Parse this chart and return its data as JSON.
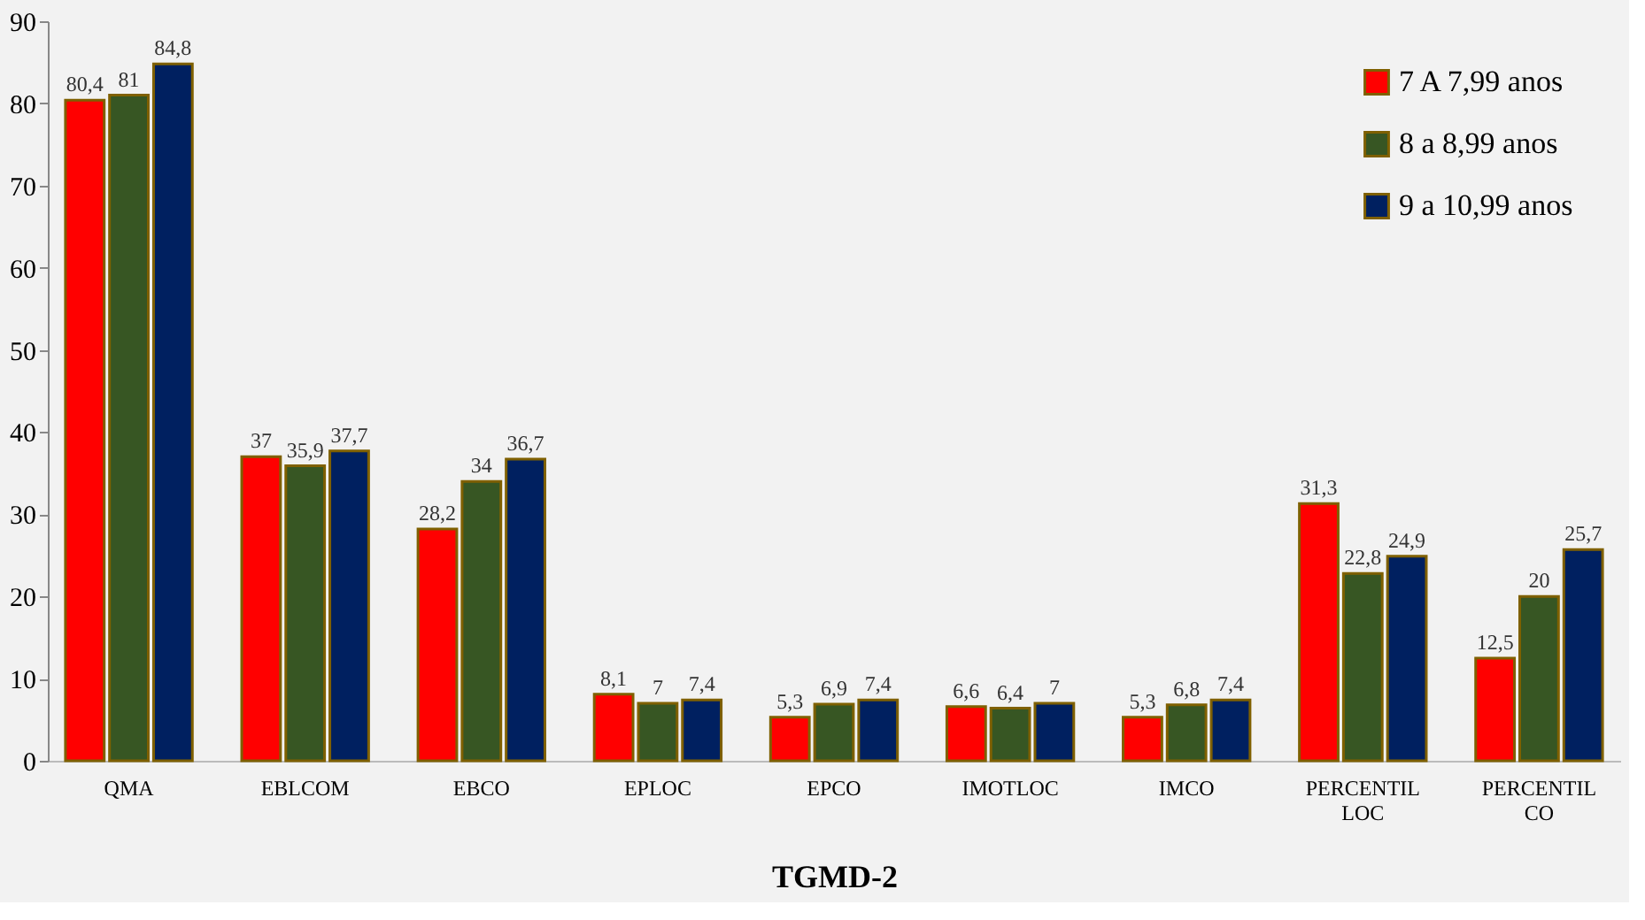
{
  "chart_data": {
    "type": "bar",
    "xlabel": "TGMD-2",
    "categories": [
      "QMA",
      "EBLCOM",
      "EBCO",
      "EPLOC",
      "EPCO",
      "IMOTLOC",
      "IMCO",
      "PERCENTIL LOC",
      "PERCENTIL CO"
    ],
    "series": [
      {
        "name": "7 A 7,99 anos",
        "color": "#ff0000",
        "values": [
          80.4,
          37,
          28.2,
          8.1,
          5.3,
          6.6,
          5.3,
          31.3,
          12.5
        ],
        "value_labels": [
          "80,4",
          "37",
          "28,2",
          "8,1",
          "5,3",
          "6,6",
          "5,3",
          "31,3",
          "12,5"
        ]
      },
      {
        "name": "8 a 8,99 anos",
        "color": "#375623",
        "values": [
          81,
          35.9,
          34,
          7,
          6.9,
          6.4,
          6.8,
          22.8,
          20
        ],
        "value_labels": [
          "81",
          "35,9",
          "34",
          "7",
          "6,9",
          "6,4",
          "6,8",
          "22,8",
          "20"
        ]
      },
      {
        "name": "9 a 10,99 anos",
        "color": "#002060",
        "values": [
          84.8,
          37.7,
          36.7,
          7.4,
          7.4,
          7,
          7.4,
          24.9,
          25.7
        ],
        "value_labels": [
          "84,8",
          "37,7",
          "36,7",
          "7,4",
          "7,4",
          "7",
          "7,4",
          "24,9",
          "25,7"
        ]
      }
    ],
    "ylim": [
      0,
      90
    ],
    "yticks": [
      0,
      10,
      20,
      30,
      40,
      50,
      60,
      70,
      80,
      90
    ],
    "grid": false,
    "legend": "top right"
  }
}
